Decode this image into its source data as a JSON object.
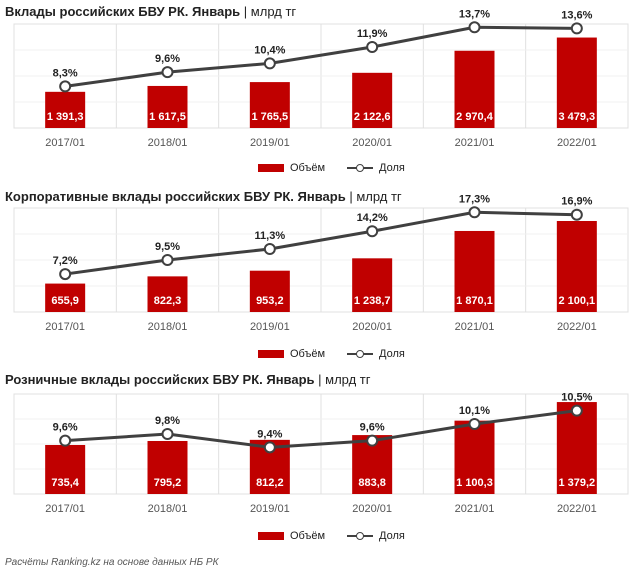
{
  "colors": {
    "bar": "#c00000",
    "line": "#404040",
    "grid": "#e0e0e0"
  },
  "legend": {
    "volume": "Объём",
    "share": "Доля"
  },
  "footer": "Расчёты Ranking.kz на основе данных НБ РК",
  "chart_data": [
    {
      "type": "bar",
      "title": "Вклады российских БВУ РК. Январь",
      "unit": "млрд тг",
      "categories": [
        "2017/01",
        "2018/01",
        "2019/01",
        "2020/01",
        "2021/01",
        "2022/01"
      ],
      "series": [
        {
          "name": "Объём",
          "type": "bar",
          "values": [
            1391.3,
            1617.5,
            1765.5,
            2122.6,
            2970.4,
            3479.3
          ],
          "labels": [
            "1 391,3",
            "1 617,5",
            "1 765,5",
            "2 122,6",
            "2 970,4",
            "3 479,3"
          ]
        },
        {
          "name": "Доля",
          "type": "line",
          "values": [
            8.3,
            9.6,
            10.4,
            11.9,
            13.7,
            13.6
          ],
          "labels": [
            "8,3%",
            "9,6%",
            "10,4%",
            "11,9%",
            "13,7%",
            "13,6%"
          ]
        }
      ],
      "bar_ylim": [
        0,
        4000
      ],
      "line_ylim": [
        4.5,
        14
      ]
    },
    {
      "type": "bar",
      "title": "Корпоративные вклады российских БВУ РК. Январь",
      "unit": "млрд тг",
      "categories": [
        "2017/01",
        "2018/01",
        "2019/01",
        "2020/01",
        "2021/01",
        "2022/01"
      ],
      "series": [
        {
          "name": "Объём",
          "type": "bar",
          "values": [
            655.9,
            822.3,
            953.2,
            1238.7,
            1870.1,
            2100.1
          ],
          "labels": [
            "655,9",
            "822,3",
            "953,2",
            "1 238,7",
            "1 870,1",
            "2 100,1"
          ]
        },
        {
          "name": "Доля",
          "type": "line",
          "values": [
            7.2,
            9.5,
            11.3,
            14.2,
            17.3,
            16.9
          ],
          "labels": [
            "7,2%",
            "9,5%",
            "11,3%",
            "14,2%",
            "17,3%",
            "16,9%"
          ]
        }
      ],
      "bar_ylim": [
        0,
        2400
      ],
      "line_ylim": [
        1,
        18
      ]
    },
    {
      "type": "bar",
      "title": "Розничные вклады российских БВУ РК. Январь",
      "unit": "млрд тг",
      "categories": [
        "2017/01",
        "2018/01",
        "2019/01",
        "2020/01",
        "2021/01",
        "2022/01"
      ],
      "series": [
        {
          "name": "Объём",
          "type": "bar",
          "values": [
            735.4,
            795.2,
            812.2,
            883.8,
            1100.3,
            1379.2
          ],
          "labels": [
            "735,4",
            "795,2",
            "812,2",
            "883,8",
            "1 100,3",
            "1 379,2"
          ]
        },
        {
          "name": "Доля",
          "type": "line",
          "values": [
            9.6,
            9.8,
            9.4,
            9.6,
            10.1,
            10.5
          ],
          "labels": [
            "9,6%",
            "9,8%",
            "9,4%",
            "9,6%",
            "10,1%",
            "10,5%"
          ]
        }
      ],
      "bar_ylim": [
        0,
        1500
      ],
      "line_ylim": [
        8,
        11
      ]
    }
  ]
}
